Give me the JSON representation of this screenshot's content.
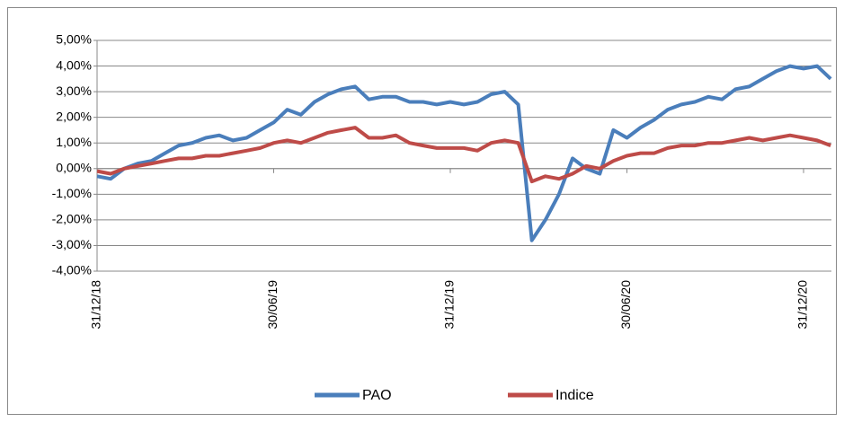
{
  "chart_data": {
    "type": "line",
    "categories": [
      "31/12/18",
      null,
      null,
      null,
      null,
      null,
      null,
      null,
      null,
      null,
      null,
      null,
      null,
      "30/06/19",
      null,
      null,
      null,
      null,
      null,
      null,
      null,
      null,
      null,
      null,
      null,
      null,
      "31/12/19",
      null,
      null,
      null,
      null,
      null,
      null,
      null,
      null,
      null,
      null,
      null,
      null,
      "30/06/20",
      null,
      null,
      null,
      null,
      null,
      null,
      null,
      null,
      null,
      null,
      null,
      null,
      "31/12/20",
      null,
      null
    ],
    "series": [
      {
        "name": "PAO",
        "color": "#4a7ebb",
        "values": [
          -0.3,
          -0.4,
          0.0,
          0.2,
          0.3,
          0.6,
          0.9,
          1.0,
          1.2,
          1.3,
          1.1,
          1.2,
          1.5,
          1.8,
          2.3,
          2.1,
          2.6,
          2.9,
          3.1,
          3.2,
          2.7,
          2.8,
          2.8,
          2.6,
          2.6,
          2.5,
          2.6,
          2.5,
          2.6,
          2.9,
          3.0,
          2.5,
          -2.8,
          -2.0,
          -1.0,
          0.4,
          0.0,
          -0.2,
          1.5,
          1.2,
          1.6,
          1.9,
          2.3,
          2.5,
          2.6,
          2.8,
          2.7,
          3.1,
          3.2,
          3.5,
          3.8,
          4.0,
          3.9,
          4.0,
          3.5
        ]
      },
      {
        "name": "Indice",
        "color": "#be4b48",
        "values": [
          -0.1,
          -0.2,
          0.0,
          0.1,
          0.2,
          0.3,
          0.4,
          0.4,
          0.5,
          0.5,
          0.6,
          0.7,
          0.8,
          1.0,
          1.1,
          1.0,
          1.2,
          1.4,
          1.5,
          1.6,
          1.2,
          1.2,
          1.3,
          1.0,
          0.9,
          0.8,
          0.8,
          0.8,
          0.7,
          1.0,
          1.1,
          1.0,
          -0.5,
          -0.3,
          -0.4,
          -0.2,
          0.1,
          0.0,
          0.3,
          0.5,
          0.6,
          0.6,
          0.8,
          0.9,
          0.9,
          1.0,
          1.0,
          1.1,
          1.2,
          1.1,
          1.2,
          1.3,
          1.2,
          1.1,
          0.9
        ]
      }
    ],
    "ylim": [
      -4,
      5
    ],
    "yticks": [
      {
        "value": -4,
        "label": "-4,00%"
      },
      {
        "value": -3,
        "label": "-3,00%"
      },
      {
        "value": -2,
        "label": "-2,00%"
      },
      {
        "value": -1,
        "label": "-1,00%"
      },
      {
        "value": 0,
        "label": "0,00%"
      },
      {
        "value": 1,
        "label": "1,00%"
      },
      {
        "value": 2,
        "label": "2,00%"
      },
      {
        "value": 3,
        "label": "3,00%"
      },
      {
        "value": 4,
        "label": "4,00%"
      },
      {
        "value": 5,
        "label": "5,00%"
      }
    ],
    "grid": true,
    "legend": "bottom"
  }
}
